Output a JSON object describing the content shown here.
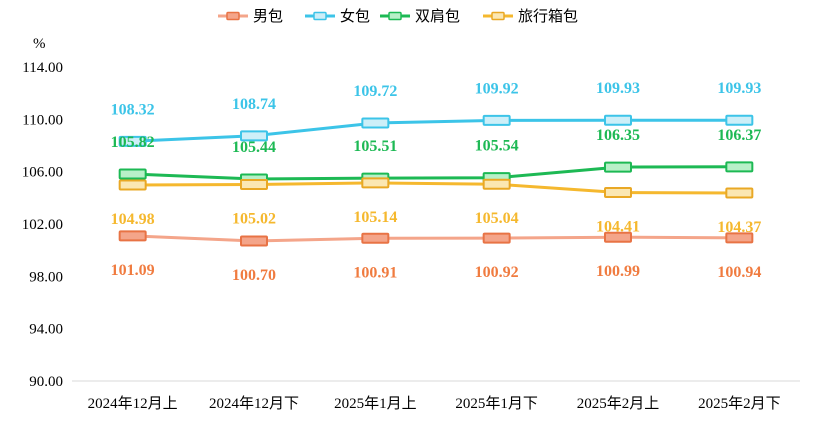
{
  "chart_data": {
    "type": "line",
    "unit_label": "%",
    "categories": [
      "2024年12月上",
      "2024年12月下",
      "2025年1月上",
      "2025年1月下",
      "2025年2月上",
      "2025年2月下"
    ],
    "yticks": [
      "90.00",
      "94.00",
      "98.00",
      "102.00",
      "106.00",
      "110.00",
      "114.00"
    ],
    "ylim": [
      90,
      114
    ],
    "grid": false,
    "legend_position": "top-center",
    "series": [
      {
        "name": "男包",
        "color": "#F4A58A",
        "marker_fill": "#F4A58A",
        "marker_stroke": "#E87345",
        "label_color": "#F07B3F",
        "label_side": "below",
        "values": [
          101.09,
          100.7,
          100.91,
          100.92,
          100.99,
          100.94
        ],
        "labels": [
          "101.09",
          "100.70",
          "100.91",
          "100.92",
          "100.99",
          "100.94"
        ]
      },
      {
        "name": "女包",
        "color": "#3CC4E8",
        "marker_fill": "#CDEFF8",
        "marker_stroke": "#3CC4E8",
        "label_color": "#3CC4E8",
        "label_side": "above",
        "values": [
          108.32,
          108.74,
          109.72,
          109.92,
          109.93,
          109.93
        ],
        "labels": [
          "108.32",
          "108.74",
          "109.72",
          "109.92",
          "109.93",
          "109.93"
        ]
      },
      {
        "name": "双肩包",
        "color": "#1DB954",
        "marker_fill": "#B8F0C8",
        "marker_stroke": "#1DB954",
        "label_color": "#1DB954",
        "label_side": "above",
        "values": [
          105.82,
          105.44,
          105.51,
          105.54,
          106.35,
          106.37
        ],
        "labels": [
          "105.82",
          "105.44",
          "105.51",
          "105.54",
          "106.35",
          "106.37"
        ]
      },
      {
        "name": "旅行箱包",
        "color": "#F5B82E",
        "marker_fill": "#FBE7B2",
        "marker_stroke": "#E9A825",
        "label_color": "#F5B82E",
        "label_side": "below",
        "values": [
          104.98,
          105.02,
          105.14,
          105.04,
          104.41,
          104.37
        ],
        "labels": [
          "104.98",
          "105.02",
          "105.14",
          "105.04",
          "104.41",
          "104.37"
        ]
      }
    ]
  }
}
